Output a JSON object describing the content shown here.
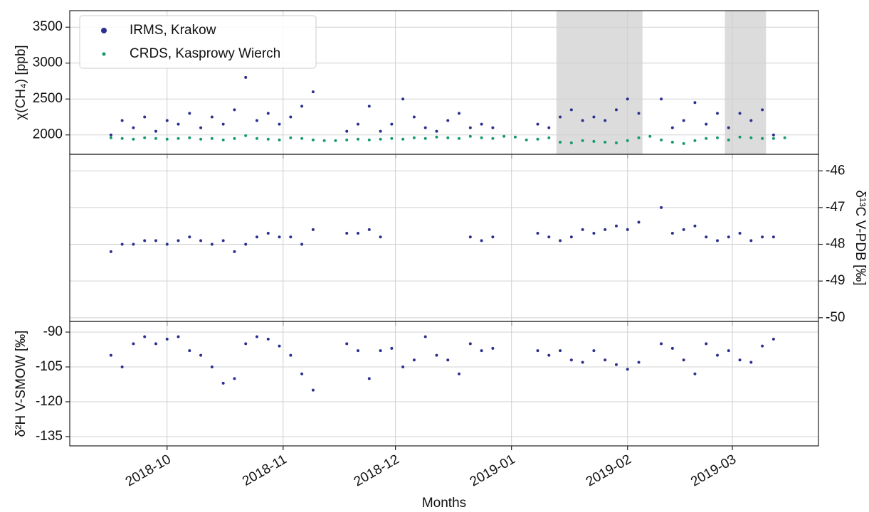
{
  "chart_data": [
    {
      "type": "scatter",
      "ylabel": "χ(CH₄) [ppb]",
      "legend": "upper left",
      "grid": true,
      "y_axis_side": "left",
      "xlim": [
        "2018-09-05",
        "2019-03-24"
      ],
      "xticks": [
        {
          "value": "2018-10-01",
          "label": "2018-10"
        },
        {
          "value": "2018-11-01",
          "label": "2018-11"
        },
        {
          "value": "2018-12-01",
          "label": "2018-12"
        },
        {
          "value": "2019-01-01",
          "label": "2019-01"
        },
        {
          "value": "2019-02-01",
          "label": "2019-02"
        },
        {
          "value": "2019-03-01",
          "label": "2019-03"
        }
      ],
      "ylim": [
        1730,
        3730
      ],
      "yticks": [
        2000,
        2500,
        3000,
        3500
      ],
      "shaded_spans": [
        [
          "2019-01-13",
          "2019-02-05"
        ],
        [
          "2019-02-27",
          "2019-03-10"
        ]
      ],
      "shade_color": "#dcdcdc",
      "x": [
        "2018-09-16",
        "2018-09-19",
        "2018-09-22",
        "2018-09-25",
        "2018-09-28",
        "2018-10-01",
        "2018-10-04",
        "2018-10-07",
        "2018-10-10",
        "2018-10-13",
        "2018-10-16",
        "2018-10-19",
        "2018-10-22",
        "2018-10-25",
        "2018-10-28",
        "2018-10-31",
        "2018-11-03",
        "2018-11-06",
        "2018-11-09",
        "2018-11-12",
        "2018-11-15",
        "2018-11-18",
        "2018-11-21",
        "2018-11-24",
        "2018-11-27",
        "2018-11-30",
        "2018-12-03",
        "2018-12-06",
        "2018-12-09",
        "2018-12-12",
        "2018-12-15",
        "2018-12-18",
        "2018-12-21",
        "2018-12-24",
        "2018-12-27",
        "2018-12-30",
        "2019-01-02",
        "2019-01-05",
        "2019-01-08",
        "2019-01-11",
        "2019-01-14",
        "2019-01-17",
        "2019-01-20",
        "2019-01-23",
        "2019-01-26",
        "2019-01-29",
        "2019-02-01",
        "2019-02-04",
        "2019-02-07",
        "2019-02-10",
        "2019-02-13",
        "2019-02-16",
        "2019-02-19",
        "2019-02-22",
        "2019-02-25",
        "2019-02-28",
        "2019-03-03",
        "2019-03-06",
        "2019-03-09",
        "2019-03-12",
        "2019-03-15"
      ],
      "series": [
        {
          "name": "IRMS, Krakow",
          "color": "#2b2f8f",
          "values": [
            2000,
            2200,
            2100,
            2250,
            2050,
            2200,
            2150,
            2300,
            2100,
            2250,
            2150,
            2350,
            2800,
            2200,
            2300,
            2150,
            2250,
            2400,
            2600,
            null,
            null,
            2050,
            2150,
            2400,
            2050,
            2150,
            2500,
            2250,
            2100,
            2050,
            2200,
            2300,
            2100,
            2150,
            2100,
            null,
            null,
            null,
            2150,
            2100,
            2250,
            2350,
            2200,
            2250,
            2200,
            2350,
            2500,
            2300,
            null,
            2500,
            2100,
            2200,
            2450,
            2150,
            2300,
            2100,
            2300,
            2200,
            2350,
            2000,
            null
          ]
        },
        {
          "name": "CRDS, Kasprowy Wierch",
          "color": "#159a6a",
          "values": [
            1960,
            1950,
            1940,
            1960,
            1950,
            1940,
            1950,
            1960,
            1940,
            1950,
            1930,
            1950,
            1990,
            1950,
            1940,
            1930,
            1960,
            1950,
            1930,
            1920,
            1920,
            1930,
            1940,
            1930,
            1940,
            1950,
            1940,
            1960,
            1950,
            1970,
            1960,
            1950,
            1980,
            1960,
            1950,
            1980,
            1970,
            1930,
            1940,
            1960,
            1900,
            1890,
            1920,
            1910,
            1900,
            1890,
            1920,
            1960,
            1980,
            1930,
            1900,
            1880,
            1920,
            1950,
            1960,
            1930,
            1970,
            1960,
            1950,
            1950,
            1960
          ]
        }
      ]
    },
    {
      "type": "scatter",
      "ylabel": "δ¹³C V-PDB [‰]",
      "grid": true,
      "y_axis_side": "right",
      "xlim": [
        "2018-09-05",
        "2019-03-24"
      ],
      "xticks": [
        {
          "value": "2018-10-01",
          "label": "2018-10"
        },
        {
          "value": "2018-11-01",
          "label": "2018-11"
        },
        {
          "value": "2018-12-01",
          "label": "2018-12"
        },
        {
          "value": "2019-01-01",
          "label": "2019-01"
        },
        {
          "value": "2019-02-01",
          "label": "2019-02"
        },
        {
          "value": "2019-03-01",
          "label": "2019-03"
        }
      ],
      "ylim": [
        -50.1,
        -45.55
      ],
      "yticks": [
        -50,
        -49,
        -48,
        -47,
        -46
      ],
      "x": [
        "2018-09-16",
        "2018-09-19",
        "2018-09-22",
        "2018-09-25",
        "2018-09-28",
        "2018-10-01",
        "2018-10-04",
        "2018-10-07",
        "2018-10-10",
        "2018-10-13",
        "2018-10-16",
        "2018-10-19",
        "2018-10-22",
        "2018-10-25",
        "2018-10-28",
        "2018-10-31",
        "2018-11-03",
        "2018-11-06",
        "2018-11-09",
        "2018-11-12",
        "2018-11-15",
        "2018-11-18",
        "2018-11-21",
        "2018-11-24",
        "2018-11-27",
        "2018-11-30",
        "2018-12-03",
        "2018-12-06",
        "2018-12-09",
        "2018-12-12",
        "2018-12-15",
        "2018-12-18",
        "2018-12-21",
        "2018-12-24",
        "2018-12-27",
        "2018-12-30",
        "2019-01-02",
        "2019-01-05",
        "2019-01-08",
        "2019-01-11",
        "2019-01-14",
        "2019-01-17",
        "2019-01-20",
        "2019-01-23",
        "2019-01-26",
        "2019-01-29",
        "2019-02-01",
        "2019-02-04",
        "2019-02-07",
        "2019-02-10",
        "2019-02-13",
        "2019-02-16",
        "2019-02-19",
        "2019-02-22",
        "2019-02-25",
        "2019-02-28",
        "2019-03-03",
        "2019-03-06",
        "2019-03-09",
        "2019-03-12",
        "2019-03-15"
      ],
      "series": [
        {
          "color": "#2b2f8f",
          "values": [
            -48.2,
            -48.0,
            -48.0,
            -47.9,
            -47.9,
            -48.0,
            -47.9,
            -47.8,
            -47.9,
            -48.0,
            -47.9,
            -48.2,
            -48.0,
            -47.8,
            -47.7,
            -47.8,
            -47.8,
            -48.0,
            -47.6,
            null,
            null,
            -47.7,
            -47.7,
            -47.6,
            -47.8,
            null,
            null,
            null,
            null,
            null,
            null,
            null,
            -47.8,
            -47.9,
            -47.8,
            null,
            null,
            null,
            -47.7,
            -47.8,
            -47.9,
            -47.8,
            -47.6,
            -47.7,
            -47.6,
            -47.5,
            -47.6,
            -47.4,
            null,
            -47.0,
            -47.7,
            -47.6,
            -47.5,
            -47.8,
            -47.9,
            -47.8,
            -47.7,
            -47.9,
            -47.8,
            -47.8,
            null
          ]
        }
      ]
    },
    {
      "type": "scatter",
      "ylabel": "δ²H V-SMOW [‰]",
      "xlabel": "Months",
      "grid": true,
      "y_axis_side": "left",
      "xlim": [
        "2018-09-05",
        "2019-03-24"
      ],
      "xticks": [
        {
          "value": "2018-10-01",
          "label": "2018-10"
        },
        {
          "value": "2018-11-01",
          "label": "2018-11"
        },
        {
          "value": "2018-12-01",
          "label": "2018-12"
        },
        {
          "value": "2019-01-01",
          "label": "2019-01"
        },
        {
          "value": "2019-02-01",
          "label": "2019-02"
        },
        {
          "value": "2019-03-01",
          "label": "2019-03"
        }
      ],
      "ylim": [
        -139,
        -85.4
      ],
      "yticks": [
        -135,
        -120,
        -105,
        -90
      ],
      "x": [
        "2018-09-16",
        "2018-09-19",
        "2018-09-22",
        "2018-09-25",
        "2018-09-28",
        "2018-10-01",
        "2018-10-04",
        "2018-10-07",
        "2018-10-10",
        "2018-10-13",
        "2018-10-16",
        "2018-10-19",
        "2018-10-22",
        "2018-10-25",
        "2018-10-28",
        "2018-10-31",
        "2018-11-03",
        "2018-11-06",
        "2018-11-09",
        "2018-11-12",
        "2018-11-15",
        "2018-11-18",
        "2018-11-21",
        "2018-11-24",
        "2018-11-27",
        "2018-11-30",
        "2018-12-03",
        "2018-12-06",
        "2018-12-09",
        "2018-12-12",
        "2018-12-15",
        "2018-12-18",
        "2018-12-21",
        "2018-12-24",
        "2018-12-27",
        "2018-12-30",
        "2019-01-02",
        "2019-01-05",
        "2019-01-08",
        "2019-01-11",
        "2019-01-14",
        "2019-01-17",
        "2019-01-20",
        "2019-01-23",
        "2019-01-26",
        "2019-01-29",
        "2019-02-01",
        "2019-02-04",
        "2019-02-07",
        "2019-02-10",
        "2019-02-13",
        "2019-02-16",
        "2019-02-19",
        "2019-02-22",
        "2019-02-25",
        "2019-02-28",
        "2019-03-03",
        "2019-03-06",
        "2019-03-09",
        "2019-03-12",
        "2019-03-15"
      ],
      "series": [
        {
          "color": "#2b2f8f",
          "values": [
            -100,
            -105,
            -95,
            -92,
            -95,
            -93,
            -92,
            -98,
            -100,
            -105,
            -112,
            -110,
            -95,
            -92,
            -93,
            -96,
            -100,
            -108,
            -115,
            null,
            null,
            -95,
            -98,
            -110,
            -98,
            -97,
            -105,
            -102,
            -92,
            -100,
            -102,
            -108,
            -95,
            -98,
            -97,
            null,
            null,
            null,
            -98,
            -100,
            -98,
            -102,
            -103,
            -98,
            -102,
            -104,
            -106,
            -103,
            null,
            -95,
            -97,
            -102,
            -108,
            -95,
            -100,
            -98,
            -102,
            -103,
            -96,
            -93,
            null
          ]
        }
      ]
    }
  ]
}
